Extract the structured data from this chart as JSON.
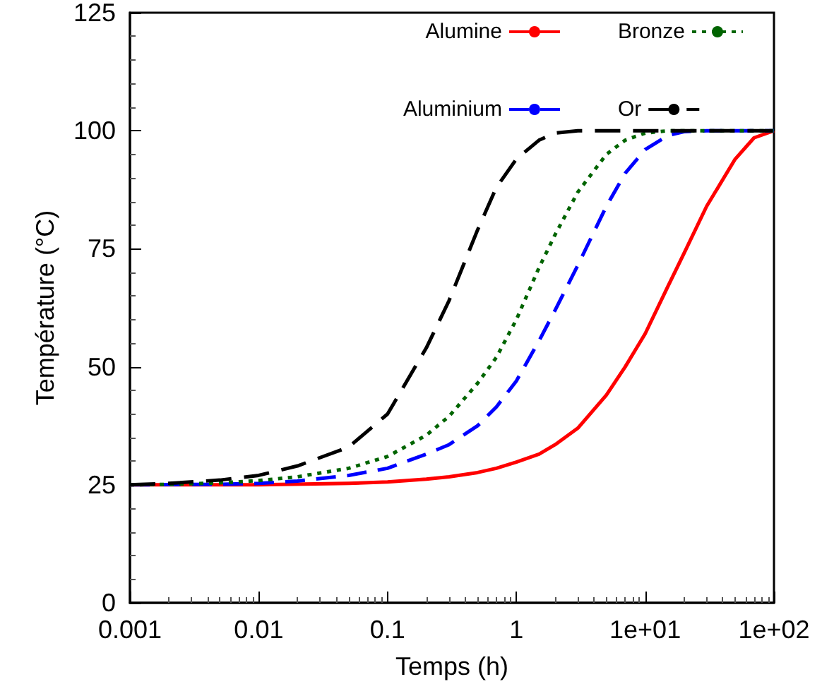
{
  "chart_data": {
    "type": "line",
    "xlabel": "Temps (h)",
    "ylabel": "Température (°C)",
    "log": "x",
    "grid": false,
    "legend": "top right",
    "marker": "none",
    "xlim": [
      0.001,
      100
    ],
    "xticks": [
      0.001,
      0.01,
      0.1,
      1,
      {
        "value": 10,
        "label": "1e+01"
      },
      {
        "value": 100,
        "label": "1e+02"
      }
    ],
    "ylim": [
      0,
      125
    ],
    "yticks": [
      0,
      25,
      50,
      75,
      100,
      125
    ],
    "series": [
      {
        "name": "Alumine",
        "color": "#ff0000",
        "line_style": "solid",
        "x": [
          0.001,
          0.01,
          0.05,
          0.1,
          0.2,
          0.3,
          0.5,
          0.7,
          1,
          1.5,
          2,
          3,
          5,
          7,
          10,
          15,
          20,
          30,
          50,
          70,
          100
        ],
        "values": [
          25,
          25,
          25.3,
          25.6,
          26.2,
          26.7,
          27.6,
          28.5,
          29.8,
          31.5,
          33.5,
          37,
          44,
          50,
          57,
          67,
          74,
          84,
          94,
          98.5,
          100
        ]
      },
      {
        "name": "Aluminium",
        "color": "#0000ff",
        "line_style": "dashed",
        "x": [
          0.001,
          0.005,
          0.01,
          0.02,
          0.05,
          0.1,
          0.2,
          0.3,
          0.5,
          0.7,
          1,
          1.5,
          2,
          3,
          5,
          7,
          10,
          15,
          20,
          30,
          50,
          100
        ],
        "values": [
          25,
          25.1,
          25.3,
          25.8,
          27,
          28.5,
          31.5,
          33.5,
          37.5,
          41.5,
          47,
          55.5,
          62,
          71.5,
          84,
          91,
          96,
          99,
          99.8,
          100,
          100,
          100
        ]
      },
      {
        "name": "Bronze",
        "color": "#006400",
        "line_style": "dotted",
        "x": [
          0.001,
          0.002,
          0.005,
          0.01,
          0.02,
          0.05,
          0.1,
          0.2,
          0.3,
          0.5,
          0.7,
          1,
          1.5,
          2,
          3,
          5,
          7,
          10,
          15,
          30,
          100
        ],
        "values": [
          25,
          25.1,
          25.4,
          25.9,
          26.7,
          28.5,
          31,
          35.5,
          39.5,
          46.5,
          52,
          60,
          71,
          78,
          87,
          95,
          98,
          99.5,
          100,
          100,
          100
        ]
      },
      {
        "name": "Or",
        "color": "#000000",
        "line_style": "dashed",
        "x": [
          0.001,
          0.002,
          0.005,
          0.01,
          0.02,
          0.05,
          0.1,
          0.2,
          0.3,
          0.5,
          0.7,
          1,
          1.5,
          2,
          3,
          10,
          100
        ],
        "values": [
          25,
          25.3,
          26,
          27,
          29,
          33,
          40,
          54,
          64,
          79,
          88,
          94,
          98,
          99.5,
          100,
          100,
          100
        ]
      }
    ]
  }
}
